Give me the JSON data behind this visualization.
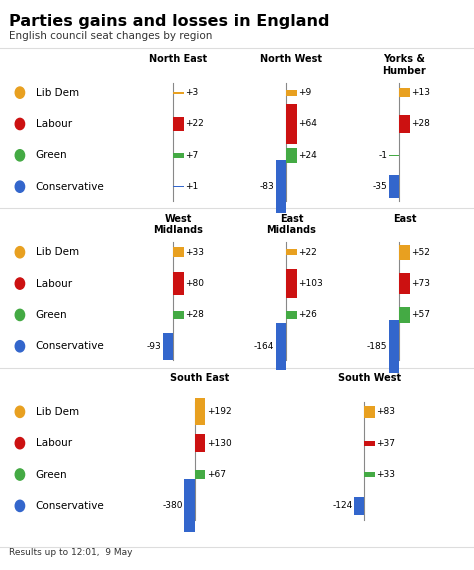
{
  "title": "Parties gains and losses in England",
  "subtitle": "English council seat changes by region",
  "footer": "Results up to 12:01,  9 May",
  "party_colors": [
    "#E8A020",
    "#CC1111",
    "#44AA44",
    "#3366CC"
  ],
  "party_labels": [
    "Lib Dem",
    "Labour",
    "Green",
    "Conservative"
  ],
  "rows": [
    {
      "regions": [
        "North East",
        "North West",
        "Yorks &\nHumber"
      ],
      "values": [
        [
          3,
          22,
          7,
          1
        ],
        [
          9,
          64,
          24,
          -83
        ],
        [
          13,
          28,
          -1,
          -35
        ]
      ]
    },
    {
      "regions": [
        "West\nMidlands",
        "East\nMidlands",
        "East"
      ],
      "values": [
        [
          33,
          80,
          28,
          -93
        ],
        [
          22,
          103,
          26,
          -164
        ],
        [
          52,
          73,
          57,
          -185
        ]
      ]
    },
    {
      "regions": [
        "South East",
        "South West"
      ],
      "values": [
        [
          192,
          130,
          67,
          -380
        ],
        [
          83,
          37,
          33,
          -124
        ]
      ]
    }
  ],
  "bg_color": "#FFFFFF",
  "sep_color": "#DDDDDD",
  "axis_color": "#888888"
}
